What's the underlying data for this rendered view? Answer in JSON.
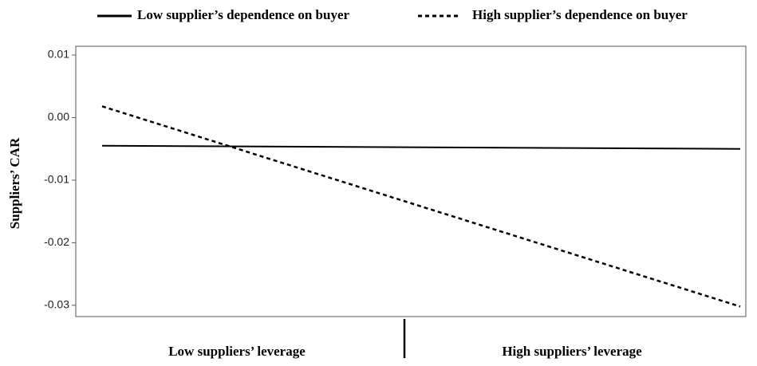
{
  "chart_data": {
    "type": "line",
    "y_label": "Suppliers’ CAR",
    "categories": [
      "Low suppliers’ leverage",
      "High suppliers’ leverage"
    ],
    "series": [
      {
        "name": "Low supplier’s dependence on buyer",
        "color": "#000000",
        "dash": "solid",
        "values": [
          -0.0045,
          -0.005
        ]
      },
      {
        "name": "High supplier’s dependence on buyer",
        "color": "#000000",
        "dash": "dashed",
        "values": [
          0.0018,
          -0.0302
        ]
      }
    ],
    "ylim": [
      -0.0318,
      0.0114
    ],
    "yticks": [
      {
        "value": 0.01,
        "label": "0.01"
      },
      {
        "value": 0,
        "label": "0.00"
      },
      -0.01,
      -0.02,
      -0.03
    ],
    "grid": false,
    "legend": "top"
  }
}
